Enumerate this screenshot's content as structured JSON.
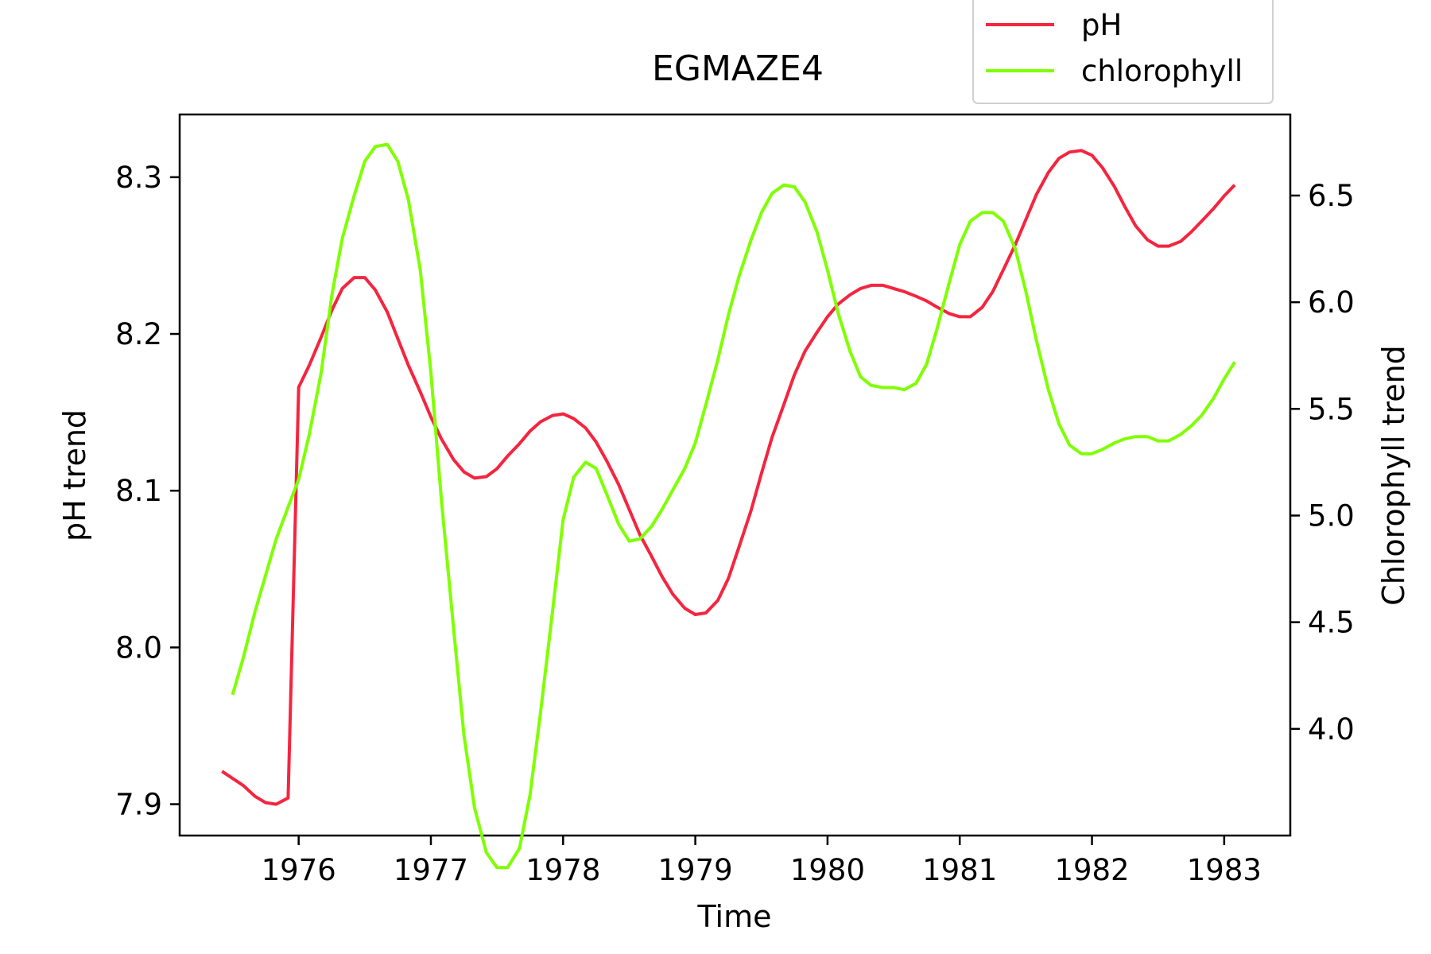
{
  "chart_data": {
    "type": "line",
    "title": "EGMAZE4",
    "xlabel": "Time",
    "ylabel": "pH trend",
    "y2label": "Chlorophyll trend",
    "xlim": [
      1975.1,
      1983.5
    ],
    "ylim": [
      7.88,
      8.34
    ],
    "y2lim": [
      3.5,
      6.88
    ],
    "xticks": [
      1976,
      1977,
      1978,
      1979,
      1980,
      1981,
      1982,
      1983
    ],
    "yticks": [
      7.9,
      8.0,
      8.1,
      8.2,
      8.3
    ],
    "y2ticks": [
      4.0,
      4.5,
      5.0,
      5.5,
      6.0,
      6.5
    ],
    "legend": {
      "placement": "upper-right, above plot"
    },
    "grid": false,
    "series": [
      {
        "name": "pH",
        "axis": "left",
        "color": "#f5253f",
        "points": [
          [
            1975.42,
            7.921
          ],
          [
            1975.58,
            7.912
          ],
          [
            1975.67,
            7.905
          ],
          [
            1975.75,
            7.901
          ],
          [
            1975.83,
            7.9
          ],
          [
            1975.92,
            7.904
          ],
          [
            1976.0,
            8.166
          ],
          [
            1976.08,
            8.18
          ],
          [
            1976.17,
            8.198
          ],
          [
            1976.25,
            8.215
          ],
          [
            1976.33,
            8.229
          ],
          [
            1976.42,
            8.236
          ],
          [
            1976.5,
            8.236
          ],
          [
            1976.58,
            8.228
          ],
          [
            1976.67,
            8.214
          ],
          [
            1976.75,
            8.197
          ],
          [
            1976.83,
            8.18
          ],
          [
            1976.92,
            8.163
          ],
          [
            1977.0,
            8.147
          ],
          [
            1977.08,
            8.133
          ],
          [
            1977.17,
            8.12
          ],
          [
            1977.25,
            8.112
          ],
          [
            1977.33,
            8.108
          ],
          [
            1977.42,
            8.109
          ],
          [
            1977.5,
            8.114
          ],
          [
            1977.58,
            8.122
          ],
          [
            1977.67,
            8.13
          ],
          [
            1977.75,
            8.138
          ],
          [
            1977.83,
            8.144
          ],
          [
            1977.92,
            8.148
          ],
          [
            1978.0,
            8.149
          ],
          [
            1978.08,
            8.146
          ],
          [
            1978.17,
            8.14
          ],
          [
            1978.25,
            8.131
          ],
          [
            1978.33,
            8.119
          ],
          [
            1978.42,
            8.104
          ],
          [
            1978.5,
            8.088
          ],
          [
            1978.58,
            8.072
          ],
          [
            1978.67,
            8.058
          ],
          [
            1978.75,
            8.045
          ],
          [
            1978.83,
            8.034
          ],
          [
            1978.92,
            8.025
          ],
          [
            1979.0,
            8.021
          ],
          [
            1979.08,
            8.022
          ],
          [
            1979.17,
            8.03
          ],
          [
            1979.25,
            8.044
          ],
          [
            1979.33,
            8.064
          ],
          [
            1979.42,
            8.087
          ],
          [
            1979.5,
            8.111
          ],
          [
            1979.58,
            8.134
          ],
          [
            1979.67,
            8.155
          ],
          [
            1979.75,
            8.174
          ],
          [
            1979.83,
            8.189
          ],
          [
            1979.92,
            8.201
          ],
          [
            1980.0,
            8.211
          ],
          [
            1980.08,
            8.219
          ],
          [
            1980.17,
            8.225
          ],
          [
            1980.25,
            8.229
          ],
          [
            1980.33,
            8.231
          ],
          [
            1980.42,
            8.231
          ],
          [
            1980.5,
            8.229
          ],
          [
            1980.58,
            8.227
          ],
          [
            1980.67,
            8.224
          ],
          [
            1980.75,
            8.221
          ],
          [
            1980.83,
            8.217
          ],
          [
            1980.92,
            8.213
          ],
          [
            1981.0,
            8.211
          ],
          [
            1981.08,
            8.211
          ],
          [
            1981.17,
            8.217
          ],
          [
            1981.25,
            8.227
          ],
          [
            1981.33,
            8.241
          ],
          [
            1981.42,
            8.257
          ],
          [
            1981.5,
            8.273
          ],
          [
            1981.58,
            8.289
          ],
          [
            1981.67,
            8.303
          ],
          [
            1981.75,
            8.312
          ],
          [
            1981.83,
            8.316
          ],
          [
            1981.92,
            8.317
          ],
          [
            1982.0,
            8.314
          ],
          [
            1982.08,
            8.306
          ],
          [
            1982.17,
            8.294
          ],
          [
            1982.25,
            8.281
          ],
          [
            1982.33,
            8.269
          ],
          [
            1982.42,
            8.26
          ],
          [
            1982.5,
            8.256
          ],
          [
            1982.58,
            8.256
          ],
          [
            1982.67,
            8.259
          ],
          [
            1982.75,
            8.265
          ],
          [
            1982.83,
            8.272
          ],
          [
            1982.92,
            8.28
          ],
          [
            1983.0,
            8.288
          ],
          [
            1983.08,
            8.295
          ]
        ]
      },
      {
        "name": "chlorophyll",
        "axis": "right",
        "color": "#7fff00",
        "points": [
          [
            1975.5,
            4.16
          ],
          [
            1975.58,
            4.33
          ],
          [
            1975.67,
            4.55
          ],
          [
            1975.75,
            4.72
          ],
          [
            1975.83,
            4.89
          ],
          [
            1975.92,
            5.04
          ],
          [
            1976.0,
            5.17
          ],
          [
            1976.08,
            5.38
          ],
          [
            1976.17,
            5.67
          ],
          [
            1976.25,
            6.03
          ],
          [
            1976.33,
            6.3
          ],
          [
            1976.42,
            6.5
          ],
          [
            1976.5,
            6.66
          ],
          [
            1976.58,
            6.73
          ],
          [
            1976.67,
            6.74
          ],
          [
            1976.75,
            6.66
          ],
          [
            1976.83,
            6.48
          ],
          [
            1976.92,
            6.15
          ],
          [
            1977.0,
            5.67
          ],
          [
            1977.08,
            5.07
          ],
          [
            1977.17,
            4.48
          ],
          [
            1977.25,
            3.97
          ],
          [
            1977.33,
            3.63
          ],
          [
            1977.42,
            3.42
          ],
          [
            1977.5,
            3.35
          ],
          [
            1977.58,
            3.35
          ],
          [
            1977.67,
            3.44
          ],
          [
            1977.75,
            3.69
          ],
          [
            1977.83,
            4.08
          ],
          [
            1977.92,
            4.55
          ],
          [
            1978.0,
            4.98
          ],
          [
            1978.08,
            5.18
          ],
          [
            1978.17,
            5.25
          ],
          [
            1978.25,
            5.22
          ],
          [
            1978.33,
            5.1
          ],
          [
            1978.42,
            4.96
          ],
          [
            1978.5,
            4.88
          ],
          [
            1978.58,
            4.89
          ],
          [
            1978.67,
            4.95
          ],
          [
            1978.75,
            5.03
          ],
          [
            1978.83,
            5.12
          ],
          [
            1978.92,
            5.22
          ],
          [
            1979.0,
            5.34
          ],
          [
            1979.08,
            5.52
          ],
          [
            1979.17,
            5.73
          ],
          [
            1979.25,
            5.94
          ],
          [
            1979.33,
            6.12
          ],
          [
            1979.42,
            6.29
          ],
          [
            1979.5,
            6.42
          ],
          [
            1979.58,
            6.51
          ],
          [
            1979.67,
            6.55
          ],
          [
            1979.75,
            6.54
          ],
          [
            1979.83,
            6.47
          ],
          [
            1979.92,
            6.33
          ],
          [
            1980.0,
            6.15
          ],
          [
            1980.08,
            5.95
          ],
          [
            1980.17,
            5.77
          ],
          [
            1980.25,
            5.65
          ],
          [
            1980.33,
            5.61
          ],
          [
            1980.42,
            5.6
          ],
          [
            1980.5,
            5.6
          ],
          [
            1980.58,
            5.59
          ],
          [
            1980.67,
            5.62
          ],
          [
            1980.75,
            5.71
          ],
          [
            1980.83,
            5.88
          ],
          [
            1980.92,
            6.09
          ],
          [
            1981.0,
            6.27
          ],
          [
            1981.08,
            6.38
          ],
          [
            1981.17,
            6.42
          ],
          [
            1981.25,
            6.42
          ],
          [
            1981.33,
            6.38
          ],
          [
            1981.42,
            6.25
          ],
          [
            1981.5,
            6.05
          ],
          [
            1981.58,
            5.82
          ],
          [
            1981.67,
            5.59
          ],
          [
            1981.75,
            5.43
          ],
          [
            1981.83,
            5.33
          ],
          [
            1981.92,
            5.29
          ],
          [
            1982.0,
            5.29
          ],
          [
            1982.08,
            5.31
          ],
          [
            1982.17,
            5.34
          ],
          [
            1982.25,
            5.36
          ],
          [
            1982.33,
            5.37
          ],
          [
            1982.42,
            5.37
          ],
          [
            1982.5,
            5.35
          ],
          [
            1982.58,
            5.35
          ],
          [
            1982.67,
            5.38
          ],
          [
            1982.75,
            5.42
          ],
          [
            1982.83,
            5.47
          ],
          [
            1982.92,
            5.55
          ],
          [
            1983.0,
            5.64
          ],
          [
            1983.08,
            5.72
          ]
        ]
      }
    ]
  }
}
